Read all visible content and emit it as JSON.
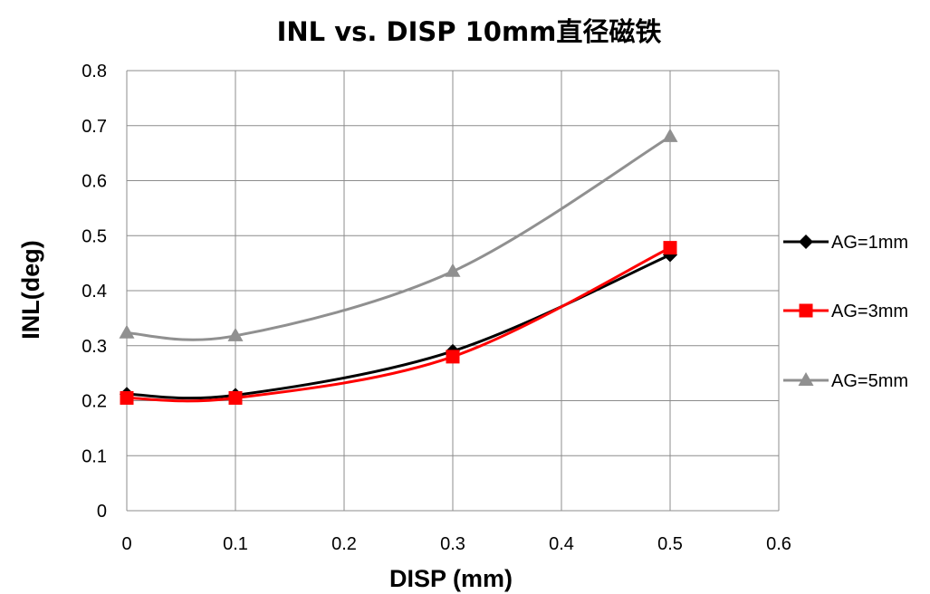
{
  "chart_data": {
    "type": "line",
    "title": "INL vs. DISP 10mm直径磁铁",
    "xlabel": "DISP (mm)",
    "ylabel": "INL(deg)",
    "xlim": [
      0,
      0.6
    ],
    "ylim": [
      0,
      0.8
    ],
    "x_ticks": [
      "0",
      "0.1",
      "0.2",
      "0.3",
      "0.4",
      "0.5",
      "0.6"
    ],
    "y_ticks": [
      "0",
      "0.1",
      "0.2",
      "0.3",
      "0.4",
      "0.5",
      "0.6",
      "0.7",
      "0.8"
    ],
    "grid": true,
    "smooth": true,
    "legend_position": "right",
    "series": [
      {
        "name": "AG=1mm",
        "color": "#000000",
        "marker": "diamond",
        "x": [
          0,
          0.1,
          0.3,
          0.5
        ],
        "y": [
          0.212,
          0.21,
          0.29,
          0.465
        ]
      },
      {
        "name": "AG=3mm",
        "color": "#ff0000",
        "marker": "square",
        "x": [
          0,
          0.1,
          0.3,
          0.5
        ],
        "y": [
          0.205,
          0.205,
          0.28,
          0.478
        ]
      },
      {
        "name": "AG=5mm",
        "color": "#909090",
        "marker": "triangle",
        "x": [
          0,
          0.1,
          0.3,
          0.5
        ],
        "y": [
          0.323,
          0.318,
          0.435,
          0.68
        ]
      }
    ]
  }
}
